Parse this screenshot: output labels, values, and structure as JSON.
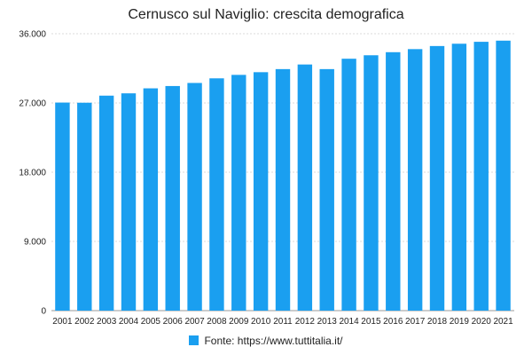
{
  "chart_data": {
    "type": "bar",
    "title": "Cernusco sul Naviglio: crescita demografica",
    "xlabel": "",
    "ylabel": "",
    "categories": [
      "2001",
      "2002",
      "2003",
      "2004",
      "2005",
      "2006",
      "2007",
      "2008",
      "2009",
      "2010",
      "2011",
      "2012",
      "2013",
      "2014",
      "2015",
      "2016",
      "2017",
      "2018",
      "2019",
      "2020",
      "2021"
    ],
    "series": [
      {
        "name": "Fonte: https://www.tuttitalia.it/",
        "color": "#1a9ff0",
        "values": [
          27050,
          27030,
          27950,
          28250,
          28900,
          29200,
          29600,
          30200,
          30650,
          31000,
          31400,
          32000,
          31400,
          32750,
          33200,
          33600,
          34000,
          34400,
          34700,
          34950,
          35100
        ]
      }
    ],
    "ylim": [
      0,
      36000
    ],
    "yticks": [
      0,
      9000,
      18000,
      27000,
      36000
    ],
    "ytick_labels": [
      "0",
      "9.000",
      "18.000",
      "27.000",
      "36.000"
    ],
    "grid": true,
    "legend_position": "bottom"
  }
}
